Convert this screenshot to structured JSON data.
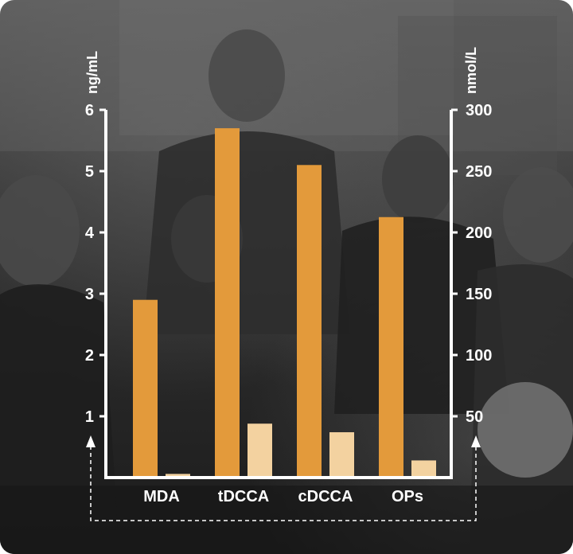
{
  "chart_data": {
    "type": "bar",
    "categories": [
      "MDA",
      "tDCCA",
      "cDCCA",
      "OPs"
    ],
    "series": [
      {
        "values": [
          2.9,
          5.7,
          5.1,
          4.25
        ],
        "axis": "left",
        "color": "#E39A3B"
      },
      {
        "values": [
          3,
          44,
          37,
          14
        ],
        "axis": "right",
        "color": "#F3D2A0"
      }
    ],
    "left_axis": {
      "label": "ng/mL",
      "ticks": [
        1,
        2,
        3,
        4,
        5,
        6
      ],
      "range": [
        0,
        6
      ]
    },
    "right_axis": {
      "label": "nmol/L",
      "ticks": [
        50,
        100,
        150,
        200,
        250,
        300
      ],
      "range": [
        0,
        300
      ]
    },
    "grid": false,
    "background": "dark grayscale photo of a family"
  }
}
